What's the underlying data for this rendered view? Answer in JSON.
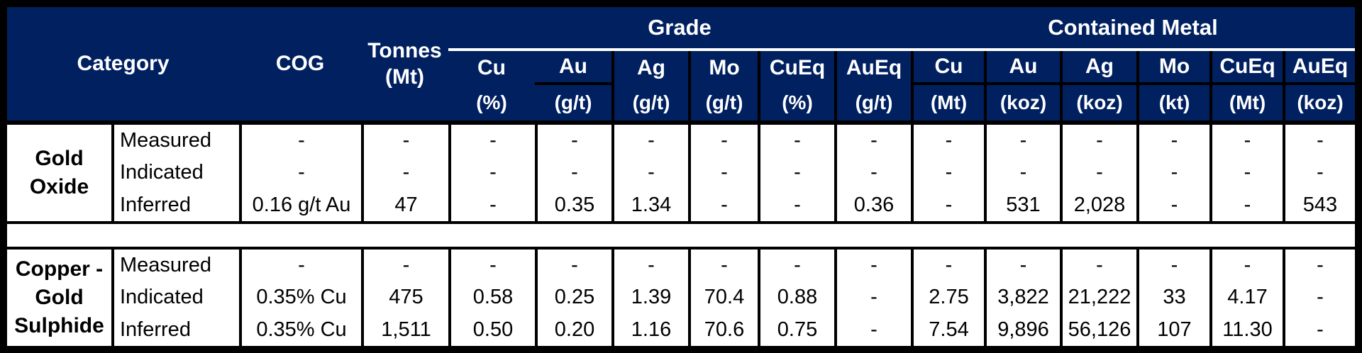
{
  "colors": {
    "header_bg": "#002060",
    "header_text": "#ffffff",
    "body_text": "#000000",
    "border": "#000000"
  },
  "header": {
    "category_label": "Category",
    "cog_label": "COG",
    "tonnes_label": "Tonnes",
    "tonnes_unit": "(Mt)",
    "grade_group_label": "Grade",
    "metal_group_label": "Contained Metal",
    "grade_columns": [
      {
        "name": "Cu",
        "unit": "(%)"
      },
      {
        "name": "Au",
        "unit": "(g/t)"
      },
      {
        "name": "Ag",
        "unit": "(g/t)"
      },
      {
        "name": "Mo",
        "unit": "(g/t)"
      },
      {
        "name": "CuEq",
        "unit": "(%)"
      },
      {
        "name": "AuEq",
        "unit": "(g/t)"
      }
    ],
    "metal_columns": [
      {
        "name": "Cu",
        "unit": "(Mt)"
      },
      {
        "name": "Au",
        "unit": "(koz)"
      },
      {
        "name": "Ag",
        "unit": "(koz)"
      },
      {
        "name": "Mo",
        "unit": "(kt)"
      },
      {
        "name": "CuEq",
        "unit": "(Mt)"
      },
      {
        "name": "AuEq",
        "unit": "(koz)"
      }
    ]
  },
  "sections": [
    {
      "category": "Gold Oxide",
      "category_lines": [
        "Gold",
        "Oxide"
      ],
      "rows": [
        {
          "classification": "Measured",
          "cog": "-",
          "tonnes": "-",
          "grade": [
            "-",
            "-",
            "-",
            "-",
            "-",
            "-"
          ],
          "metal": [
            "-",
            "-",
            "-",
            "-",
            "-",
            "-"
          ]
        },
        {
          "classification": "Indicated",
          "cog": "-",
          "tonnes": "-",
          "grade": [
            "-",
            "-",
            "-",
            "-",
            "-",
            "-"
          ],
          "metal": [
            "-",
            "-",
            "-",
            "-",
            "-",
            "-"
          ]
        },
        {
          "classification": "Inferred",
          "cog": "0.16 g/t Au",
          "tonnes": "47",
          "grade": [
            "-",
            "0.35",
            "1.34",
            "-",
            "-",
            "0.36"
          ],
          "metal": [
            "-",
            "531",
            "2,028",
            "-",
            "-",
            "543"
          ]
        }
      ]
    },
    {
      "category": "Copper - Gold Sulphide",
      "category_lines": [
        "Copper -",
        "Gold",
        "Sulphide"
      ],
      "rows": [
        {
          "classification": "Measured",
          "cog": "-",
          "tonnes": "-",
          "grade": [
            "-",
            "-",
            "-",
            "-",
            "-",
            "-"
          ],
          "metal": [
            "-",
            "-",
            "-",
            "-",
            "-",
            "-"
          ]
        },
        {
          "classification": "Indicated",
          "cog": "0.35% Cu",
          "tonnes": "475",
          "grade": [
            "0.58",
            "0.25",
            "1.39",
            "70.4",
            "0.88",
            "-"
          ],
          "metal": [
            "2.75",
            "3,822",
            "21,222",
            "33",
            "4.17",
            "-"
          ]
        },
        {
          "classification": "Inferred",
          "cog": "0.35% Cu",
          "tonnes": "1,511",
          "grade": [
            "0.50",
            "0.20",
            "1.16",
            "70.6",
            "0.75",
            "-"
          ],
          "metal": [
            "7.54",
            "9,896",
            "56,126",
            "107",
            "11.30",
            "-"
          ]
        }
      ]
    }
  ]
}
